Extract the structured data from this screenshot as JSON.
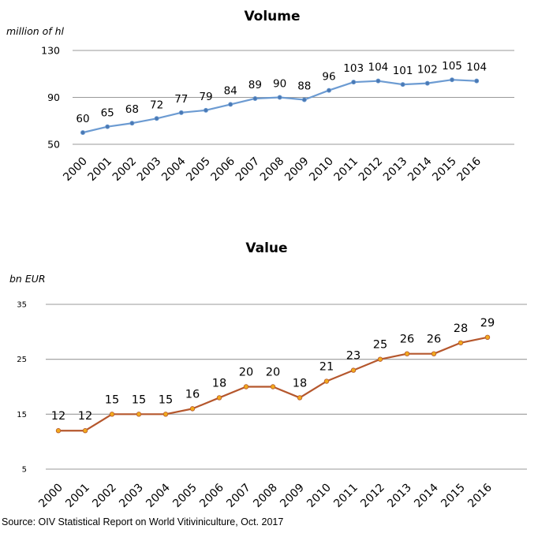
{
  "chart_data": [
    {
      "type": "line",
      "title": "Volume",
      "ylabel": "million of hl",
      "xlabel": "",
      "ylim": [
        50,
        130
      ],
      "yticks": [
        50,
        90,
        130
      ],
      "grid": true,
      "categories": [
        "2000",
        "2001",
        "2002",
        "2003",
        "2004",
        "2005",
        "2006",
        "2007",
        "2008",
        "2009",
        "2010",
        "2011",
        "2012",
        "2013",
        "2014",
        "2015",
        "2016"
      ],
      "series": [
        {
          "name": "Volume",
          "values": [
            60,
            65,
            68,
            72,
            77,
            79,
            84,
            89,
            90,
            88,
            96,
            103,
            104,
            101,
            102,
            105,
            104
          ]
        }
      ],
      "line_color": "#6c9bd2",
      "marker_color": "#4a79b4"
    },
    {
      "type": "line",
      "title": "Value",
      "ylabel": "bn EUR",
      "xlabel": "",
      "ylim": [
        5,
        35
      ],
      "yticks": [
        5,
        15,
        25,
        35
      ],
      "grid": true,
      "categories": [
        "2000",
        "2001",
        "2002",
        "2003",
        "2004",
        "2005",
        "2006",
        "2007",
        "2008",
        "2009",
        "2010",
        "2011",
        "2012",
        "2013",
        "2014",
        "2015",
        "2016"
      ],
      "series": [
        {
          "name": "Value",
          "values": [
            12,
            12,
            15,
            15,
            15,
            16,
            18,
            20,
            20,
            18,
            21,
            23,
            25,
            26,
            26,
            28,
            29
          ]
        }
      ],
      "line_color": "#b5572d",
      "marker_color": "#f2a91d"
    }
  ],
  "source": "Source: OIV Statistical Report on World Vitiviniculture, Oct. 2017"
}
